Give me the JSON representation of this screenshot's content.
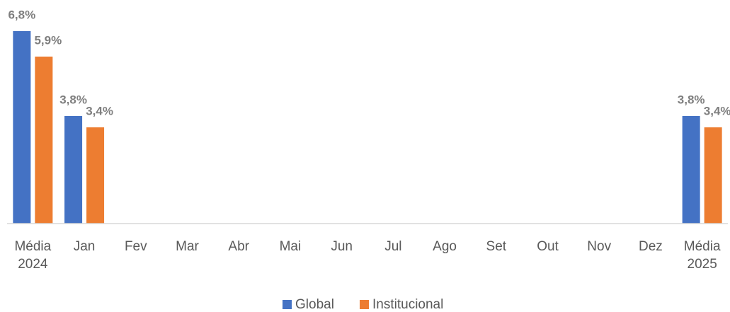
{
  "chart_data": {
    "type": "bar",
    "categories": [
      "Média 2024",
      "Jan",
      "Fev",
      "Mar",
      "Abr",
      "Mai",
      "Jun",
      "Jul",
      "Ago",
      "Set",
      "Out",
      "Nov",
      "Dez",
      "Média 2025"
    ],
    "series": [
      {
        "name": "Global",
        "color": "#4472c4",
        "values": [
          6.8,
          3.8,
          null,
          null,
          null,
          null,
          null,
          null,
          null,
          null,
          null,
          null,
          null,
          3.8
        ],
        "value_labels": [
          "6,8%",
          "3,8%",
          null,
          null,
          null,
          null,
          null,
          null,
          null,
          null,
          null,
          null,
          null,
          "3,8%"
        ]
      },
      {
        "name": "Institucional",
        "color": "#ed7d31",
        "values": [
          5.9,
          3.4,
          null,
          null,
          null,
          null,
          null,
          null,
          null,
          null,
          null,
          null,
          null,
          3.4
        ],
        "value_labels": [
          "5,9%",
          "3,4%",
          null,
          null,
          null,
          null,
          null,
          null,
          null,
          null,
          null,
          null,
          null,
          "3,4%"
        ]
      }
    ],
    "legend": "bottom"
  }
}
